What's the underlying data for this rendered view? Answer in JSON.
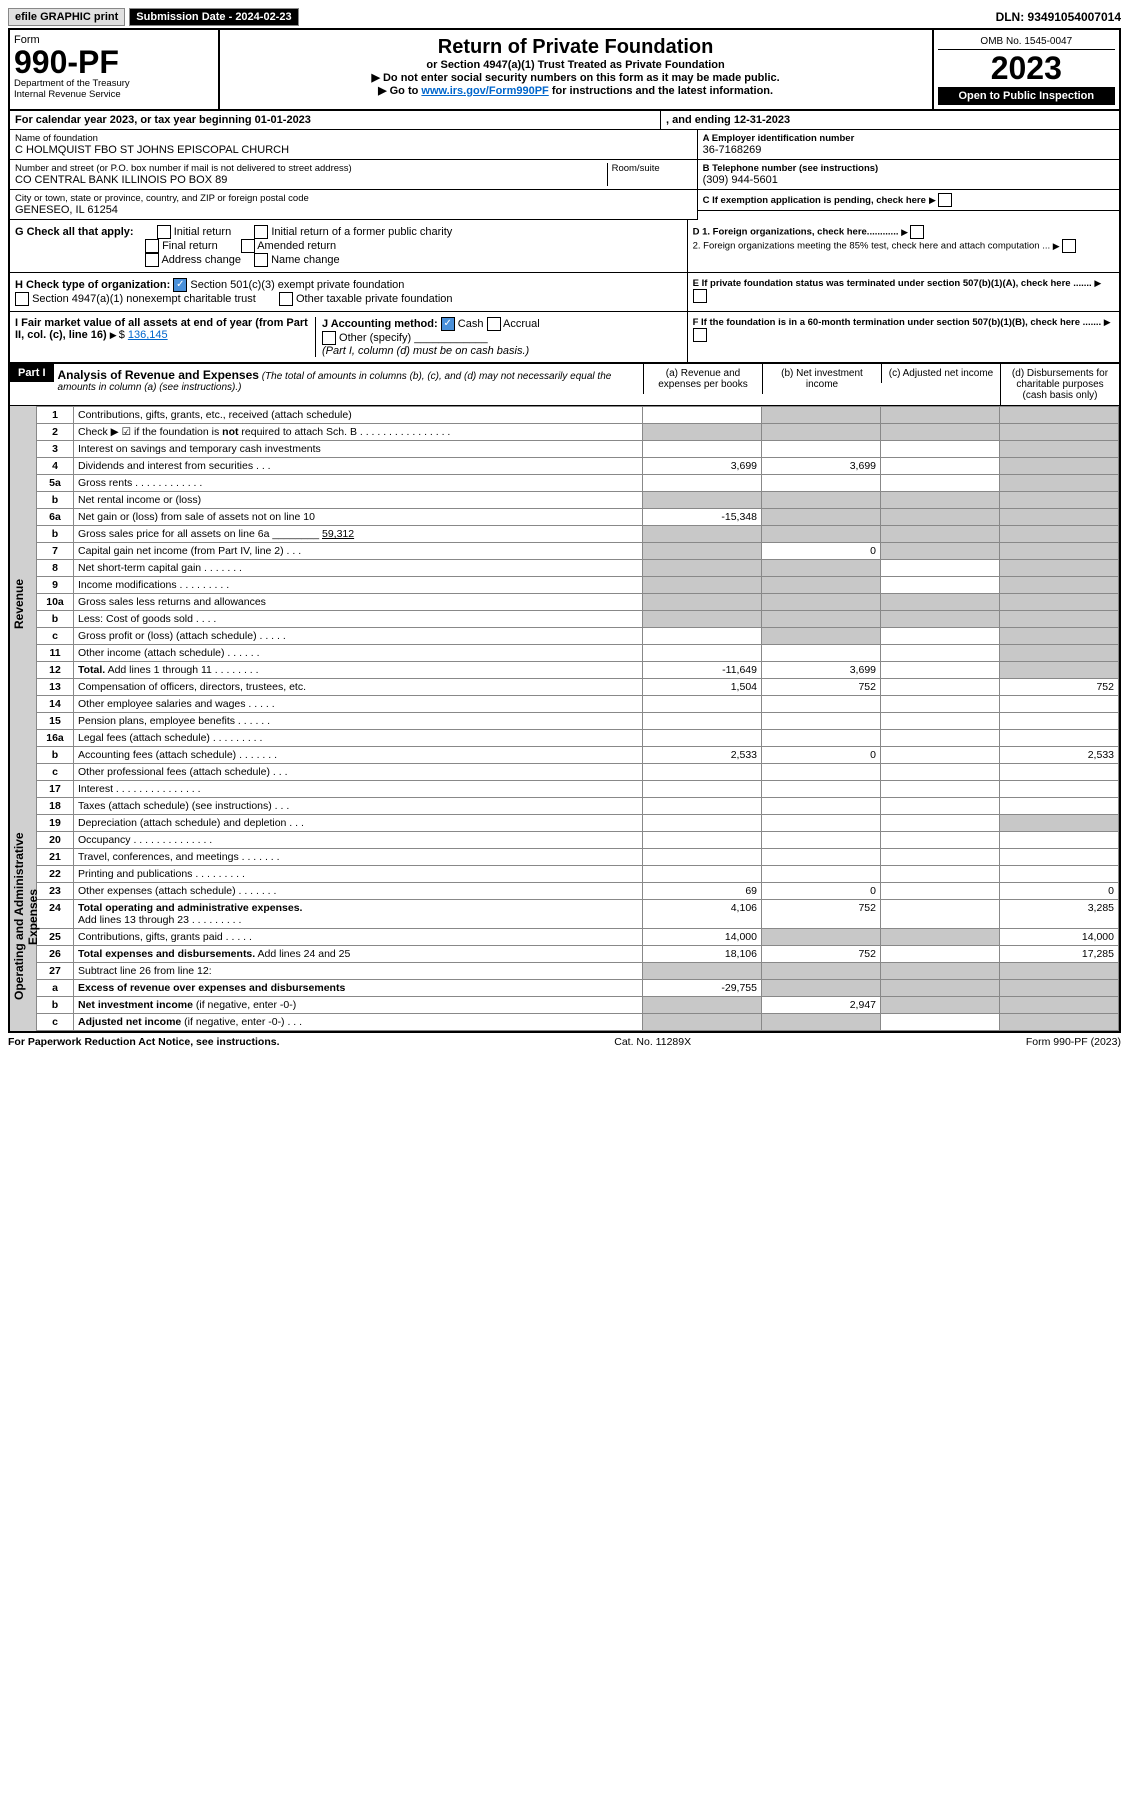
{
  "topbar": {
    "efile": "efile GRAPHIC print",
    "sub_label": "Submission Date - 2024-02-23",
    "dln": "DLN: 93491054007014"
  },
  "header": {
    "form_label": "Form",
    "form_no": "990-PF",
    "dept": "Department of the Treasury",
    "irs": "Internal Revenue Service",
    "title": "Return of Private Foundation",
    "subtitle": "or Section 4947(a)(1) Trust Treated as Private Foundation",
    "note1": "▶ Do not enter social security numbers on this form as it may be made public.",
    "note2_pre": "▶ Go to ",
    "note2_link": "www.irs.gov/Form990PF",
    "note2_post": " for instructions and the latest information.",
    "omb": "OMB No. 1545-0047",
    "year": "2023",
    "open": "Open to Public Inspection"
  },
  "cal": {
    "text": "For calendar year 2023, or tax year beginning 01-01-2023",
    "end": ", and ending 12-31-2023"
  },
  "info": {
    "name_lbl": "Name of foundation",
    "name": "C HOLMQUIST FBO ST JOHNS EPISCOPAL CHURCH",
    "addr_lbl": "Number and street (or P.O. box number if mail is not delivered to street address)",
    "addr": "CO CENTRAL BANK ILLINOIS PO BOX 89",
    "room_lbl": "Room/suite",
    "city_lbl": "City or town, state or province, country, and ZIP or foreign postal code",
    "city": "GENESEO, IL  61254",
    "a_lbl": "A Employer identification number",
    "a_val": "36-7168269",
    "b_lbl": "B Telephone number (see instructions)",
    "b_val": "(309) 944-5601",
    "c_lbl": "C If exemption application is pending, check here",
    "d1": "D 1. Foreign organizations, check here............",
    "d2": "2. Foreign organizations meeting the 85% test, check here and attach computation ...",
    "e_lbl": "E  If private foundation status was terminated under section 507(b)(1)(A), check here .......",
    "f_lbl": "F  If the foundation is in a 60-month termination under section 507(b)(1)(B), check here .......",
    "g_lbl": "G Check all that apply:",
    "g_opts": [
      "Initial return",
      "Final return",
      "Address change",
      "Initial return of a former public charity",
      "Amended return",
      "Name change"
    ],
    "h_lbl": "H Check type of organization:",
    "h_1": "Section 501(c)(3) exempt private foundation",
    "h_2": "Section 4947(a)(1) nonexempt charitable trust",
    "h_3": "Other taxable private foundation",
    "i_lbl": "I Fair market value of all assets at end of year (from Part II, col. (c), line 16)",
    "i_val": "136,145",
    "j_lbl": "J Accounting method:",
    "j_cash": "Cash",
    "j_acc": "Accrual",
    "j_other": "Other (specify)",
    "j_note": "(Part I, column (d) must be on cash basis.)"
  },
  "part1": {
    "label": "Part I",
    "title": "Analysis of Revenue and Expenses",
    "title_note": "(The total of amounts in columns (b), (c), and (d) may not necessarily equal the amounts in column (a) (see instructions).)",
    "col_a": "(a)   Revenue and expenses per books",
    "col_b": "(b)   Net investment income",
    "col_c": "(c)   Adjusted net income",
    "col_d": "(d)   Disbursements for charitable purposes (cash basis only)",
    "vert_rev": "Revenue",
    "vert_exp": "Operating and Administrative Expenses"
  },
  "lines": [
    {
      "n": "1",
      "d": "g",
      "a": "",
      "b": "g",
      "c": "g"
    },
    {
      "n": "2",
      "d": "g",
      "a": "g",
      "b": "g",
      "c": "g"
    },
    {
      "n": "3",
      "d": "g",
      "a": "",
      "b": "",
      "c": ""
    },
    {
      "n": "4",
      "d": "g",
      "a": "3,699",
      "b": "3,699",
      "c": ""
    },
    {
      "n": "5a",
      "d": "g",
      "a": "",
      "b": "",
      "c": ""
    },
    {
      "n": "b",
      "d": "g",
      "a": "g",
      "b": "g",
      "c": "g"
    },
    {
      "n": "6a",
      "d": "g",
      "a": "-15,348",
      "b": "g",
      "c": "g"
    },
    {
      "n": "b",
      "d": "g",
      "a": "g",
      "b": "g",
      "c": "g"
    },
    {
      "n": "7",
      "d": "g",
      "a": "g",
      "b": "0",
      "c": "g"
    },
    {
      "n": "8",
      "d": "g",
      "a": "g",
      "b": "g",
      "c": ""
    },
    {
      "n": "9",
      "d": "g",
      "a": "g",
      "b": "g",
      "c": ""
    },
    {
      "n": "10a",
      "d": "g",
      "a": "g",
      "b": "g",
      "c": "g"
    },
    {
      "n": "b",
      "d": "g",
      "a": "g",
      "b": "g",
      "c": "g"
    },
    {
      "n": "c",
      "d": "g",
      "a": "",
      "b": "g",
      "c": ""
    },
    {
      "n": "11",
      "d": "g",
      "a": "",
      "b": "",
      "c": ""
    },
    {
      "n": "12",
      "d": "g",
      "a": "-11,649",
      "b": "3,699",
      "c": "",
      "bold": true
    },
    {
      "n": "13",
      "d": "752",
      "a": "1,504",
      "b": "752",
      "c": ""
    },
    {
      "n": "14",
      "d": "",
      "a": "",
      "b": "",
      "c": ""
    },
    {
      "n": "15",
      "d": "",
      "a": "",
      "b": "",
      "c": ""
    },
    {
      "n": "16a",
      "d": "",
      "a": "",
      "b": "",
      "c": ""
    },
    {
      "n": "b",
      "d": "2,533",
      "a": "2,533",
      "b": "0",
      "c": ""
    },
    {
      "n": "c",
      "d": "",
      "a": "",
      "b": "",
      "c": ""
    },
    {
      "n": "17",
      "d": "",
      "a": "",
      "b": "",
      "c": ""
    },
    {
      "n": "18",
      "d": "",
      "a": "",
      "b": "",
      "c": ""
    },
    {
      "n": "19",
      "d": "g",
      "a": "",
      "b": "",
      "c": ""
    },
    {
      "n": "20",
      "d": "",
      "a": "",
      "b": "",
      "c": ""
    },
    {
      "n": "21",
      "d": "",
      "a": "",
      "b": "",
      "c": ""
    },
    {
      "n": "22",
      "d": "",
      "a": "",
      "b": "",
      "c": ""
    },
    {
      "n": "23",
      "d": "0",
      "a": "69",
      "b": "0",
      "c": ""
    },
    {
      "n": "24",
      "d": "3,285",
      "a": "4,106",
      "b": "752",
      "c": "",
      "bold": true
    },
    {
      "n": "25",
      "d": "14,000",
      "a": "14,000",
      "b": "g",
      "c": "g"
    },
    {
      "n": "26",
      "d": "17,285",
      "a": "18,106",
      "b": "752",
      "c": "",
      "bold": true
    },
    {
      "n": "27",
      "d": "g",
      "a": "g",
      "b": "g",
      "c": "g"
    },
    {
      "n": "a",
      "d": "g",
      "a": "-29,755",
      "b": "g",
      "c": "g",
      "bold": true
    },
    {
      "n": "b",
      "d": "g",
      "a": "g",
      "b": "2,947",
      "c": "g",
      "bold": true
    },
    {
      "n": "c",
      "d": "g",
      "a": "g",
      "b": "g",
      "c": "",
      "bold": true
    }
  ],
  "footer": {
    "l": "For Paperwork Reduction Act Notice, see instructions.",
    "m": "Cat. No. 11289X",
    "r": "Form 990-PF (2023)"
  }
}
